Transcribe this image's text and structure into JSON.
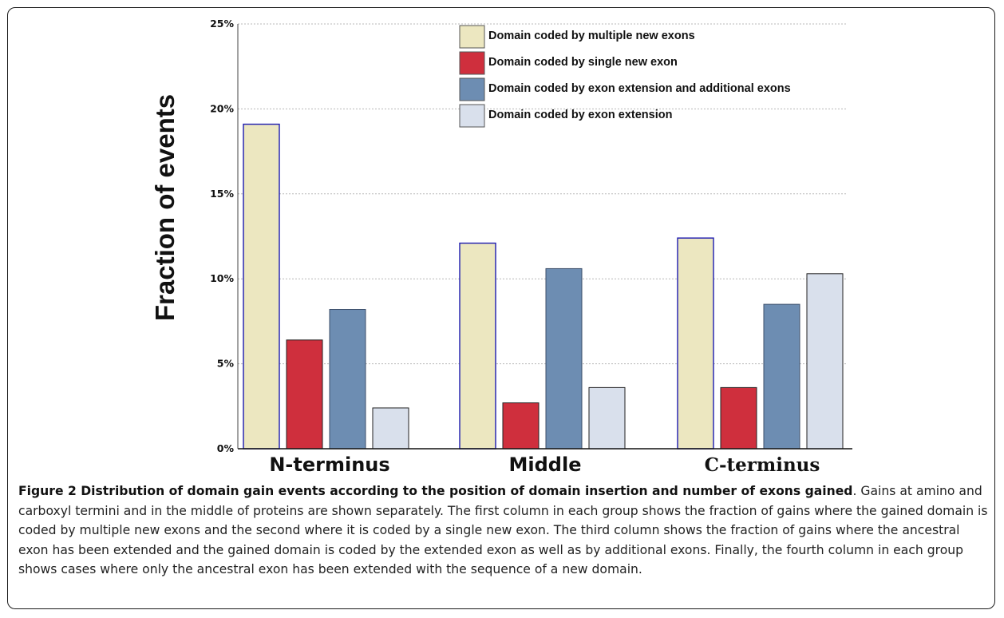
{
  "chart_data": {
    "type": "bar",
    "ylabel": "Fraction of events",
    "xlabel": "",
    "ylim": [
      0,
      25
    ],
    "yticks": [
      0,
      5,
      10,
      15,
      20,
      25
    ],
    "ytick_labels": [
      "0%",
      "5%",
      "10%",
      "15%",
      "20%",
      "25%"
    ],
    "grid": "horizontal dotted",
    "legend_position": "top-right",
    "categories": [
      "N-terminus",
      "Middle",
      "C-terminus"
    ],
    "series": [
      {
        "name": "Domain coded by multiple new exons",
        "color": "#ece7c0",
        "values": [
          19.1,
          12.1,
          12.4
        ]
      },
      {
        "name": "Domain coded by single new exon",
        "color": "#cf2f3d",
        "values": [
          6.4,
          2.7,
          3.6
        ]
      },
      {
        "name": "Domain coded by exon extension and additional exons",
        "color": "#6d8db2",
        "values": [
          8.2,
          10.6,
          8.5
        ]
      },
      {
        "name": "Domain coded by exon extension",
        "color": "#d9e0ec",
        "values": [
          2.4,
          3.6,
          10.3
        ]
      }
    ]
  },
  "caption": {
    "title": "Figure 2 Distribution of domain gain events according to the position of domain insertion and number of exons gained",
    "body": ". Gains at amino and carboxyl termini and in the middle of proteins are shown separately. The first column in each group shows the fraction of gains where the gained domain is coded by multiple new exons and the second where it is coded by a single new exon. The third column shows the fraction of gains where the ancestral exon has been extended and the gained domain is coded by the extended exon as well as by additional exons. Finally, the fourth column in each group shows cases where only the ancestral exon has been extended with the sequence of a new domain."
  }
}
